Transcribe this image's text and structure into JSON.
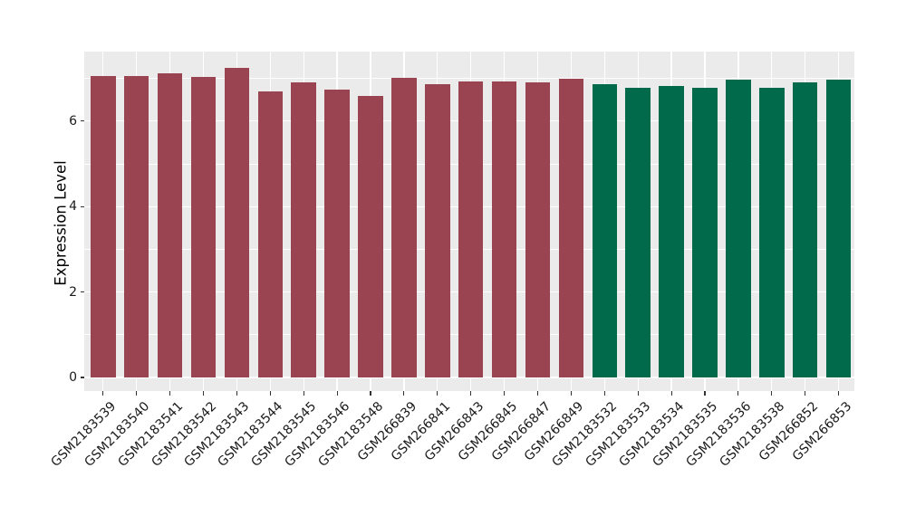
{
  "chart_data": {
    "type": "bar",
    "title": "",
    "xlabel": "",
    "ylabel": "Expression Level",
    "categories": [
      "GSM2183539",
      "GSM2183540",
      "GSM2183541",
      "GSM2183542",
      "GSM2183543",
      "GSM2183544",
      "GSM2183545",
      "GSM2183546",
      "GSM2183548",
      "GSM266839",
      "GSM266841",
      "GSM266843",
      "GSM266845",
      "GSM266847",
      "GSM266849",
      "GSM2183532",
      "GSM2183533",
      "GSM2183534",
      "GSM2183535",
      "GSM2183536",
      "GSM2183538",
      "GSM266852",
      "GSM266853"
    ],
    "values": [
      7.06,
      7.06,
      7.12,
      7.03,
      7.25,
      6.7,
      6.91,
      6.74,
      6.59,
      7.02,
      6.86,
      6.93,
      6.93,
      6.91,
      7.0,
      6.87,
      6.78,
      6.82,
      6.77,
      6.96,
      6.77,
      6.9,
      6.96
    ],
    "groups": [
      {
        "name": "group-red",
        "color": "#9a4452",
        "count": 15
      },
      {
        "name": "group-green",
        "color": "#016a4b",
        "count": 8
      }
    ],
    "ylim": [
      0,
      7.63
    ],
    "yticks": [
      0,
      2,
      4,
      6
    ],
    "y_minor_ticks": [
      1,
      3,
      5,
      7
    ],
    "grid": true,
    "legend": "none",
    "colors": {
      "panel_background": "#ebebeb",
      "grid": "#ffffff",
      "tick": "#333333",
      "tick_label": "#1a1a1a",
      "axis_title": "#000000",
      "figure_background": "#ffffff"
    }
  }
}
